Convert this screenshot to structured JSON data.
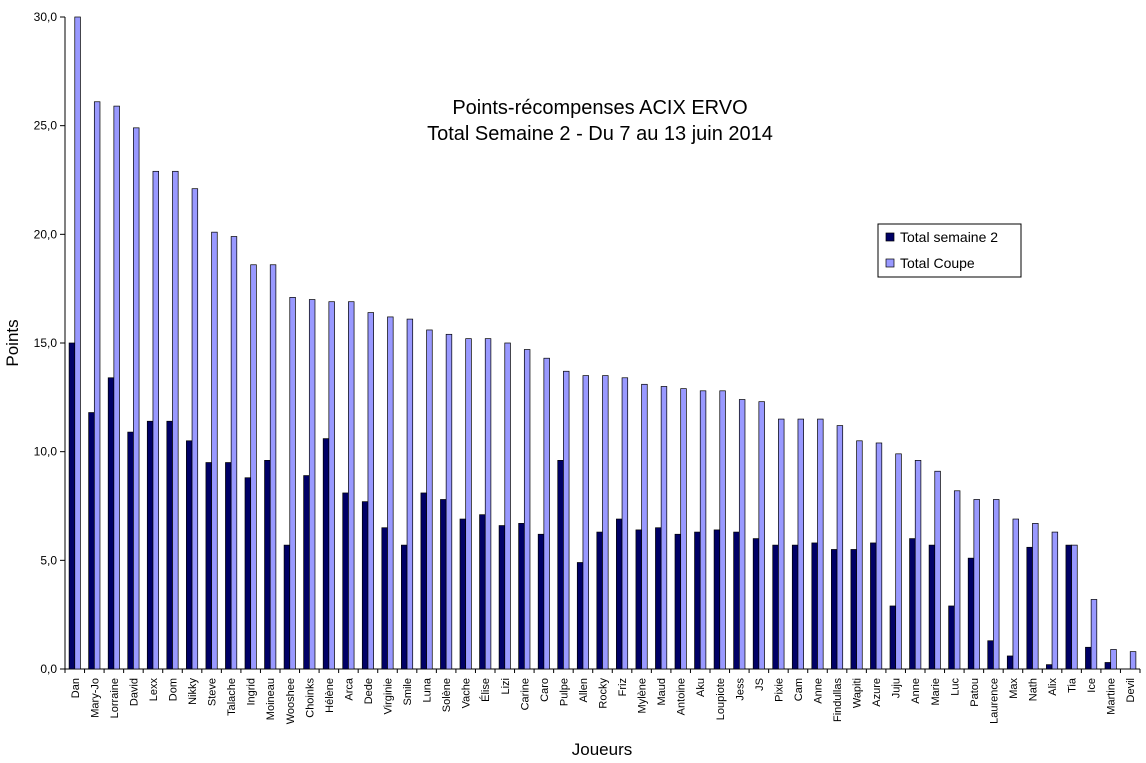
{
  "chart_data": {
    "type": "bar",
    "title_lines": [
      "Points-récompenses ACIX ERVO",
      "Total Semaine 2 - Du 7 au 13 juin 2014"
    ],
    "xlabel": "Joueurs",
    "ylabel": "Points",
    "ylim": [
      0,
      30
    ],
    "yticks": [
      0,
      5,
      10,
      15,
      20,
      25,
      30
    ],
    "ytick_labels": [
      "0,0",
      "5,0",
      "10,0",
      "15,0",
      "20,0",
      "25,0",
      "30,0"
    ],
    "grid": false,
    "legend_position": "right",
    "categories": [
      "Dan",
      "Mary-Jo",
      "Lorraine",
      "David",
      "Lexx",
      "Dom",
      "Nikky",
      "Steve",
      "Talache",
      "Ingrid",
      "Moineau",
      "Wooshee",
      "Choinks",
      "Hélène",
      "Arca",
      "Dede",
      "Virginie",
      "Smile",
      "Luna",
      "Solène",
      "Vache",
      "Élise",
      "Lizi",
      "Carine",
      "Caro",
      "Pulpe",
      "Allen",
      "Rocky",
      "Friz",
      "Mylène",
      "Maud",
      "Antoine",
      "Aku",
      "Loupiote",
      "Jess",
      "JS",
      "Pixie",
      "Cam",
      "Anne",
      "Findullas",
      "Wapiti",
      "Azure",
      "Juju",
      "Anne",
      "Marie",
      "Luc",
      "Patou",
      "Laurence",
      "Max",
      "Nath",
      "Alix",
      "Tia",
      "Ice",
      "Martine",
      "Devil"
    ],
    "series": [
      {
        "name": "Total semaine 2",
        "color": "#000066",
        "values": [
          15.0,
          11.8,
          13.4,
          10.9,
          11.4,
          11.4,
          10.5,
          9.5,
          9.5,
          8.8,
          9.6,
          5.7,
          8.9,
          10.6,
          8.1,
          7.7,
          6.5,
          5.7,
          8.1,
          7.8,
          6.9,
          7.1,
          6.6,
          6.7,
          6.2,
          9.6,
          4.9,
          6.3,
          6.9,
          6.4,
          6.5,
          6.2,
          6.3,
          6.4,
          6.3,
          6.0,
          5.7,
          5.7,
          5.8,
          5.5,
          5.5,
          5.8,
          2.9,
          6.0,
          5.7,
          2.9,
          5.1,
          1.3,
          0.6,
          5.6,
          0.2,
          5.7,
          1.0,
          0.3,
          0.0
        ]
      },
      {
        "name": "Total Coupe",
        "color": "#9999ff",
        "values": [
          30.0,
          26.1,
          25.9,
          24.9,
          22.9,
          22.9,
          22.1,
          20.1,
          19.9,
          18.6,
          18.6,
          17.1,
          17.0,
          16.9,
          16.9,
          16.4,
          16.2,
          16.1,
          15.6,
          15.4,
          15.2,
          15.2,
          15.0,
          14.7,
          14.3,
          13.7,
          13.5,
          13.5,
          13.4,
          13.1,
          13.0,
          12.9,
          12.8,
          12.8,
          12.4,
          12.3,
          11.5,
          11.5,
          11.5,
          11.2,
          10.5,
          10.4,
          9.9,
          9.6,
          9.1,
          8.2,
          7.8,
          7.8,
          6.9,
          6.7,
          6.3,
          5.7,
          3.2,
          0.9,
          0.8
        ]
      }
    ]
  }
}
